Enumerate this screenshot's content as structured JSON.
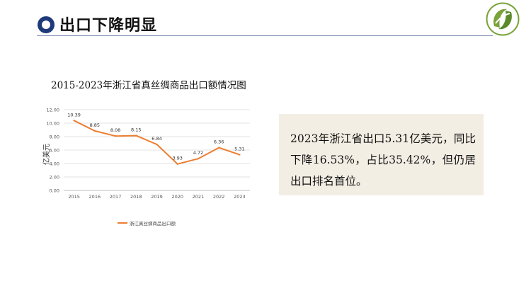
{
  "header": {
    "title": "出口下降明显",
    "logo_icon": "green-leaf-logo-icon",
    "bullet_icon": "ring-bullet-icon"
  },
  "colors": {
    "accent_navy": "#1f3a7a",
    "series_orange": "#ed7d31",
    "note_bg": "#f3eee4",
    "logo_green": "#7aa33a"
  },
  "chart_data": {
    "type": "line",
    "title": "2015-2023年浙江省真丝绸商品出口额情况图",
    "ylabel": "亿美元",
    "xlabel": "",
    "categories": [
      "2015",
      "2016",
      "2017",
      "2018",
      "2019",
      "2020",
      "2021",
      "2022",
      "2023"
    ],
    "series": [
      {
        "name": "浙江真丝绸商品出口额",
        "values": [
          10.39,
          8.85,
          8.08,
          8.15,
          6.84,
          3.93,
          4.72,
          6.36,
          5.31
        ]
      }
    ],
    "data_labels": [
      "10.39",
      "8.85",
      "8.08",
      "8.15",
      "6.84",
      "3.93",
      "4.72",
      "6.36",
      "5.31"
    ],
    "y_ticks": [
      "0.00",
      "2.00",
      "4.00",
      "6.00",
      "8.00",
      "10.00",
      "12.00"
    ],
    "ylim": [
      0,
      12
    ],
    "grid": true,
    "legend_position": "bottom"
  },
  "note": {
    "text": "2023年浙江省出口5.31亿美元，同比下降16.53%，占比35.42%，但仍居出口排名首位。"
  }
}
